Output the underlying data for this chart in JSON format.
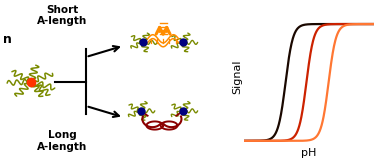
{
  "fig_width": 3.78,
  "fig_height": 1.63,
  "dpi": 100,
  "sigmoid_curves": [
    {
      "midpoint": 3.2,
      "color": "#1a0800",
      "lw": 1.6,
      "steep": 3.5
    },
    {
      "midpoint": 4.8,
      "color": "#cc2200",
      "lw": 1.6,
      "steep": 3.5
    },
    {
      "midpoint": 6.5,
      "color": "#ff7733",
      "lw": 1.6,
      "steep": 3.5
    }
  ],
  "xlabel": "pH",
  "ylabel": "Signal",
  "xlim": [
    0,
    10
  ],
  "ylim": [
    -0.05,
    1.15
  ],
  "text_short": "Short\nA-length",
  "text_long": "Long\nA-length",
  "text_n": "n",
  "olive_color": "#7a8b00",
  "navy_color": "#000080",
  "red_center": "#ff3300",
  "dark_red": "#8b0000",
  "orange_color": "#ff8c00",
  "background": "#ffffff"
}
